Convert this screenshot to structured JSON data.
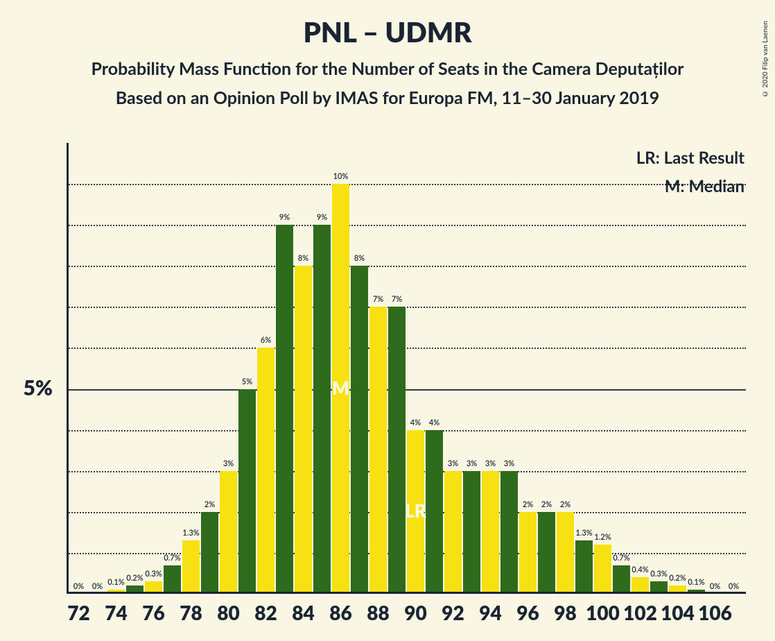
{
  "title": "PNL – UDMR",
  "subtitle1": "Probability Mass Function for the Number of Seats in the Camera Deputaților",
  "subtitle2": "Based on an Opinion Poll by IMAS for Europa FM, 11–30 January 2019",
  "legend": {
    "lr": "LR: Last Result",
    "m": "M: Median"
  },
  "copyright": "© 2020 Filip van Laenen",
  "chart": {
    "type": "bar",
    "background_color": "#f9f7e3",
    "axis_color": "#1a2433",
    "grid_color": "#1a2433",
    "text_color": "#1a2433",
    "annot_text_color": "#f9f7e3",
    "bar_colors": {
      "yellow": "#f7e112",
      "green": "#2f6b1c"
    },
    "ylim_percent": [
      0,
      11
    ],
    "grid_steps_percent": [
      1,
      2,
      3,
      4,
      5,
      6,
      7,
      8,
      9,
      10
    ],
    "major_grid_percent": 5,
    "y_tick_label": "5%",
    "x_range": [
      72,
      106
    ],
    "x_tick_step": 2,
    "x_ticks": [
      72,
      74,
      76,
      78,
      80,
      82,
      84,
      86,
      88,
      90,
      92,
      94,
      96,
      98,
      100,
      102,
      104,
      106
    ],
    "bar_width_ratio": 0.92,
    "bars": [
      {
        "x": 72,
        "color": "yellow",
        "value": 0,
        "label": "0%"
      },
      {
        "x": 73,
        "color": "green",
        "value": 0,
        "label": "0%"
      },
      {
        "x": 74,
        "color": "yellow",
        "value": 0.1,
        "label": "0.1%"
      },
      {
        "x": 75,
        "color": "green",
        "value": 0.2,
        "label": "0.2%"
      },
      {
        "x": 76,
        "color": "yellow",
        "value": 0.3,
        "label": "0.3%"
      },
      {
        "x": 77,
        "color": "green",
        "value": 0.7,
        "label": "0.7%"
      },
      {
        "x": 78,
        "color": "yellow",
        "value": 1.3,
        "label": "1.3%"
      },
      {
        "x": 79,
        "color": "green",
        "value": 2,
        "label": "2%"
      },
      {
        "x": 80,
        "color": "yellow",
        "value": 3,
        "label": "3%"
      },
      {
        "x": 81,
        "color": "green",
        "value": 5,
        "label": "5%"
      },
      {
        "x": 82,
        "color": "yellow",
        "value": 6,
        "label": "6%"
      },
      {
        "x": 83,
        "color": "green",
        "value": 9,
        "label": "9%"
      },
      {
        "x": 84,
        "color": "yellow",
        "value": 8,
        "label": "8%"
      },
      {
        "x": 85,
        "color": "green",
        "value": 9,
        "label": "9%"
      },
      {
        "x": 86,
        "color": "yellow",
        "value": 10,
        "label": "10%"
      },
      {
        "x": 87,
        "color": "green",
        "value": 8,
        "label": "8%"
      },
      {
        "x": 88,
        "color": "yellow",
        "value": 7,
        "label": "7%"
      },
      {
        "x": 89,
        "color": "green",
        "value": 7,
        "label": "7%"
      },
      {
        "x": 90,
        "color": "yellow",
        "value": 4,
        "label": "4%"
      },
      {
        "x": 91,
        "color": "green",
        "value": 4,
        "label": "4%"
      },
      {
        "x": 92,
        "color": "yellow",
        "value": 3,
        "label": "3%"
      },
      {
        "x": 93,
        "color": "green",
        "value": 3,
        "label": "3%"
      },
      {
        "x": 94,
        "color": "yellow",
        "value": 3,
        "label": "3%"
      },
      {
        "x": 95,
        "color": "green",
        "value": 3,
        "label": "3%"
      },
      {
        "x": 96,
        "color": "yellow",
        "value": 2,
        "label": "2%"
      },
      {
        "x": 97,
        "color": "green",
        "value": 2,
        "label": "2%"
      },
      {
        "x": 98,
        "color": "yellow",
        "value": 2,
        "label": "2%"
      },
      {
        "x": 99,
        "color": "green",
        "value": 1.3,
        "label": "1.3%"
      },
      {
        "x": 100,
        "color": "yellow",
        "value": 1.2,
        "label": "1.2%"
      },
      {
        "x": 101,
        "color": "green",
        "value": 0.7,
        "label": "0.7%"
      },
      {
        "x": 102,
        "color": "yellow",
        "value": 0.4,
        "label": "0.4%"
      },
      {
        "x": 103,
        "color": "green",
        "value": 0.3,
        "label": "0.3%"
      },
      {
        "x": 104,
        "color": "yellow",
        "value": 0.2,
        "label": "0.2%"
      },
      {
        "x": 105,
        "color": "green",
        "value": 0.1,
        "label": "0.1%"
      },
      {
        "x": 106,
        "color": "yellow",
        "value": 0,
        "label": "0%"
      },
      {
        "x": 107,
        "color": "green",
        "value": 0,
        "label": "0%"
      }
    ],
    "annotations": [
      {
        "text": "M",
        "x": 86,
        "color": "yellow"
      },
      {
        "text": "LR",
        "x": 90,
        "color": "yellow"
      }
    ]
  }
}
